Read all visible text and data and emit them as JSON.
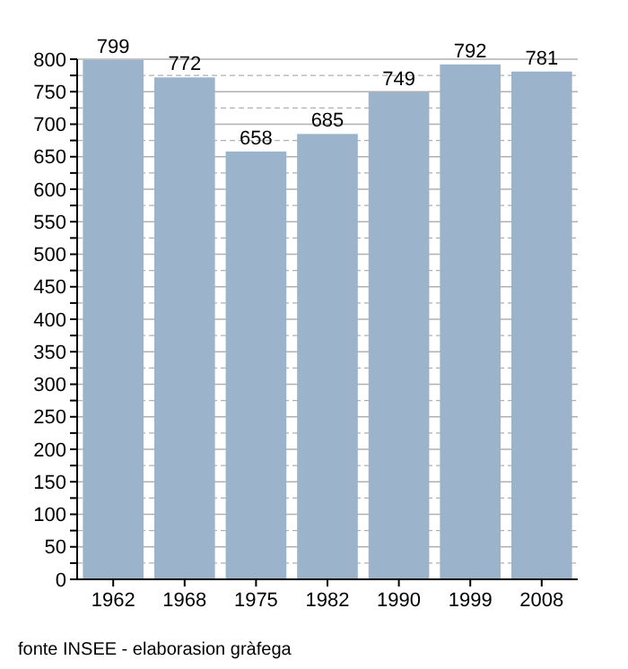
{
  "chart_data": {
    "type": "bar",
    "categories": [
      "1962",
      "1968",
      "1975",
      "1982",
      "1990",
      "1999",
      "2008"
    ],
    "values": [
      799,
      772,
      658,
      685,
      749,
      792,
      781
    ],
    "color": "#9bb4cc",
    "data_labels": true,
    "ylim": [
      0,
      800
    ],
    "yticks": [
      0,
      {
        "value": 25,
        "label": null
      },
      50,
      {
        "value": 75,
        "label": null
      },
      100,
      {
        "value": 125,
        "label": null
      },
      150,
      {
        "value": 175,
        "label": null
      },
      200,
      {
        "value": 225,
        "label": null
      },
      250,
      {
        "value": 275,
        "label": null
      },
      300,
      {
        "value": 325,
        "label": null
      },
      350,
      {
        "value": 375,
        "label": null
      },
      400,
      {
        "value": 425,
        "label": null
      },
      450,
      {
        "value": 475,
        "label": null
      },
      500,
      {
        "value": 525,
        "label": null
      },
      550,
      {
        "value": 575,
        "label": null
      },
      600,
      {
        "value": 625,
        "label": null
      },
      650,
      {
        "value": 675,
        "label": null
      },
      700,
      {
        "value": 725,
        "label": null
      },
      750,
      {
        "value": 775,
        "label": null
      },
      800
    ],
    "grid": "y",
    "annotations": [
      "fonte INSEE - elaborasion gràfega"
    ]
  }
}
